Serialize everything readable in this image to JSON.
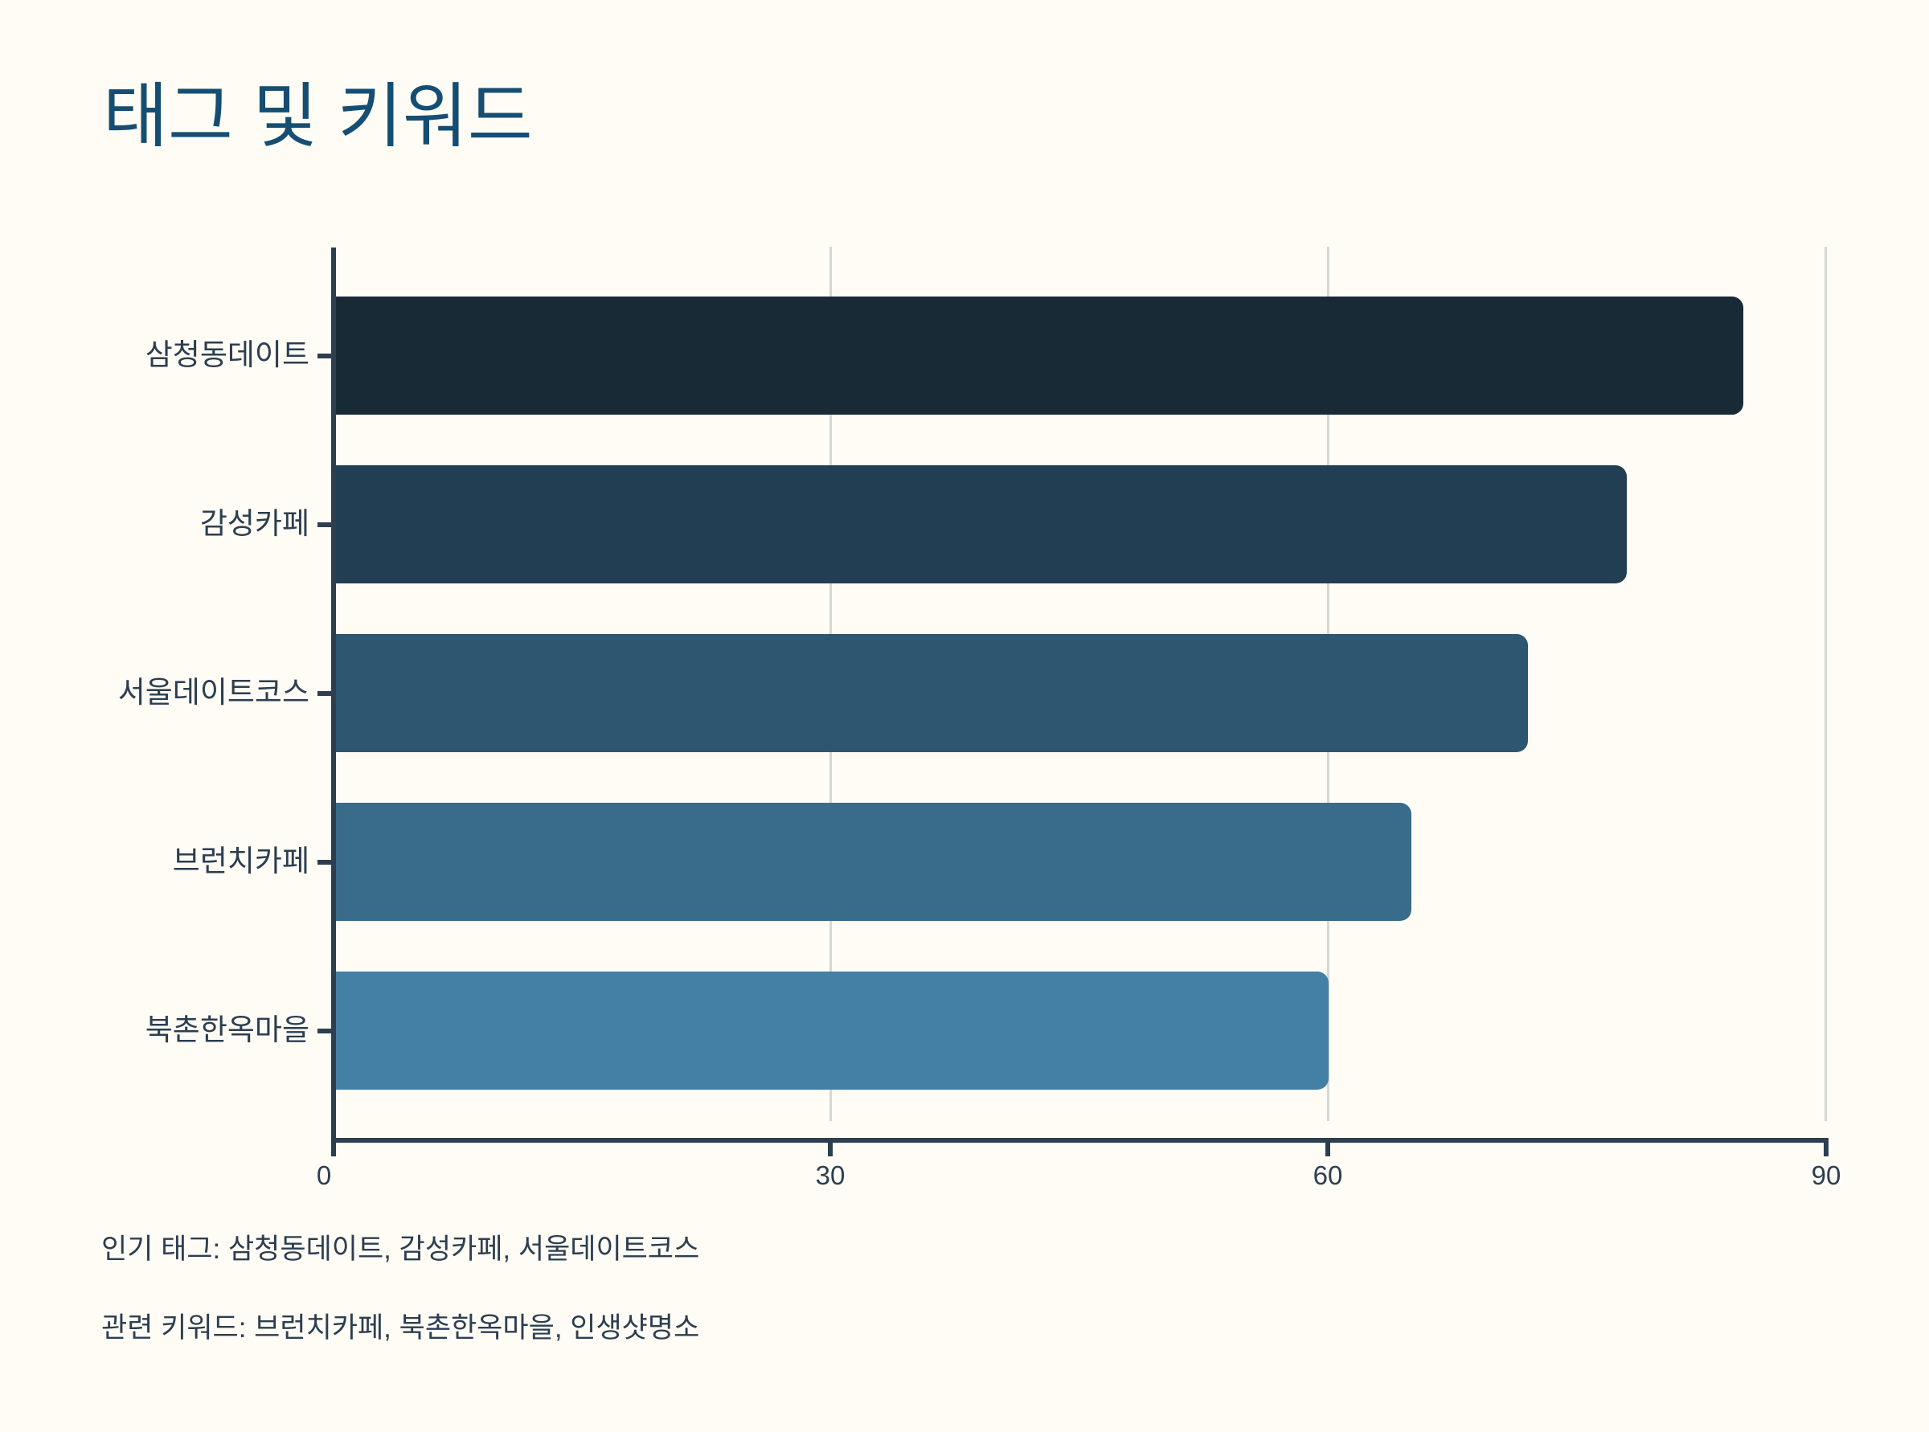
{
  "title": "태그 및 키워드",
  "colors": {
    "background": "#fffcf5",
    "title": "#154e72",
    "axis": "#2c3e50",
    "grid": "#d5d8d4"
  },
  "chart_data": {
    "type": "bar",
    "orientation": "horizontal",
    "title": "태그 및 키워드",
    "xlabel": "",
    "ylabel": "",
    "categories": [
      "삼청동데이트",
      "감성카페",
      "서울데이트코스",
      "브런치카페",
      "북촌한옥마을"
    ],
    "values": [
      85,
      78,
      72,
      65,
      60
    ],
    "bar_colors": [
      "#182a36",
      "#223e52",
      "#2d5670",
      "#396b8a",
      "#447fa5"
    ],
    "xlim": [
      0,
      90
    ],
    "x_ticks": [
      0,
      30,
      60,
      90
    ],
    "grid": "vertical",
    "legend": null
  },
  "axis": {
    "x_tick_labels": [
      "0",
      "30",
      "60",
      "90"
    ]
  },
  "bars": [
    {
      "label": "삼청동데이트",
      "value": 85
    },
    {
      "label": "감성카페",
      "value": 78
    },
    {
      "label": "서울데이트코스",
      "value": 72
    },
    {
      "label": "브런치카페",
      "value": 65
    },
    {
      "label": "북촌한옥마을",
      "value": 60
    }
  ],
  "footer": {
    "popular_tags": "인기 태그: 삼청동데이트, 감성카페, 서울데이트코스",
    "related_keywords": "관련 키워드: 브런치카페, 북촌한옥마을, 인생샷명소"
  }
}
